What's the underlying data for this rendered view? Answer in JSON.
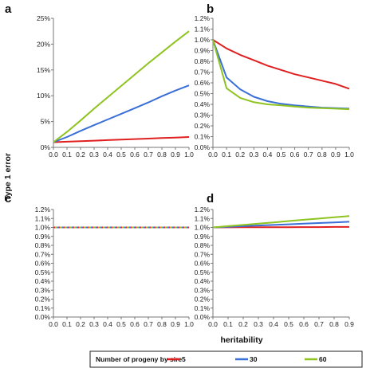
{
  "figure": {
    "ylabel": "Type 1 error",
    "xlabel": "heritability"
  },
  "legend": {
    "title": "Number of progeny by sire",
    "entries": [
      {
        "label": "5",
        "color": "#e02020"
      },
      {
        "label": "30",
        "color": "#3a6fd8"
      },
      {
        "label": "60",
        "color": "#8fc31f"
      }
    ]
  },
  "chart_data": [
    {
      "panel": "a",
      "type": "line",
      "ylim": [
        0,
        25
      ],
      "y_ticks": [
        "0%",
        "5%",
        "10%",
        "15%",
        "20%",
        "25%"
      ],
      "y_tick_values": [
        0,
        5,
        10,
        15,
        20,
        25
      ],
      "xlim": [
        0,
        1.0
      ],
      "x_ticks": [
        "0.0",
        "0.1",
        "0.2",
        "0.3",
        "0.4",
        "0.5",
        "0.6",
        "0.7",
        "0.8",
        "0.9",
        "1.0"
      ],
      "x": [
        0.0,
        0.1,
        0.2,
        0.3,
        0.4,
        0.5,
        0.6,
        0.7,
        0.8,
        0.9,
        1.0
      ],
      "series": [
        {
          "color": "#e02020",
          "values": [
            1.0,
            1.1,
            1.2,
            1.3,
            1.4,
            1.5,
            1.6,
            1.7,
            1.8,
            1.9,
            2.0
          ]
        },
        {
          "color": "#3a6fd8",
          "values": [
            1.0,
            2.0,
            3.2,
            4.3,
            5.4,
            6.5,
            7.6,
            8.7,
            9.9,
            11.0,
            12.0
          ]
        },
        {
          "color": "#8fc31f",
          "values": [
            1.0,
            3.0,
            5.2,
            7.5,
            9.7,
            11.9,
            14.1,
            16.3,
            18.4,
            20.5,
            22.5
          ]
        }
      ]
    },
    {
      "panel": "b",
      "type": "line",
      "ylim": [
        0,
        1.2
      ],
      "y_ticks": [
        "0.0%",
        "0.1%",
        "0.2%",
        "0.3%",
        "0.4%",
        "0.5%",
        "0.6%",
        "0.7%",
        "0.8%",
        "0.9%",
        "1.0%",
        "1.1%",
        "1.2%"
      ],
      "y_tick_values": [
        0,
        0.1,
        0.2,
        0.3,
        0.4,
        0.5,
        0.6,
        0.7,
        0.8,
        0.9,
        1.0,
        1.1,
        1.2
      ],
      "xlim": [
        0,
        1.0
      ],
      "x_ticks": [
        "0.0",
        "0.1",
        "0.2",
        "0.3",
        "0.4",
        "0.5",
        "0.6",
        "0.7",
        "0.8",
        "0.9",
        "1.0"
      ],
      "x": [
        0.0,
        0.1,
        0.2,
        0.3,
        0.4,
        0.5,
        0.6,
        0.7,
        0.8,
        0.9,
        1.0
      ],
      "series": [
        {
          "color": "#e02020",
          "values": [
            1.0,
            0.92,
            0.86,
            0.81,
            0.76,
            0.72,
            0.68,
            0.65,
            0.62,
            0.59,
            0.545
          ]
        },
        {
          "color": "#3a6fd8",
          "values": [
            1.0,
            0.65,
            0.54,
            0.47,
            0.43,
            0.405,
            0.39,
            0.38,
            0.37,
            0.365,
            0.36
          ]
        },
        {
          "color": "#8fc31f",
          "values": [
            1.0,
            0.55,
            0.46,
            0.42,
            0.4,
            0.39,
            0.38,
            0.37,
            0.365,
            0.36,
            0.355
          ]
        }
      ]
    },
    {
      "panel": "c",
      "type": "line",
      "ylim": [
        0,
        1.2
      ],
      "y_ticks": [
        "0.0%",
        "0.1%",
        "0.2%",
        "0.3%",
        "0.4%",
        "0.5%",
        "0.6%",
        "0.7%",
        "0.8%",
        "0.9%",
        "1.0%",
        "1.1%",
        "1.2%"
      ],
      "y_tick_values": [
        0,
        0.1,
        0.2,
        0.3,
        0.4,
        0.5,
        0.6,
        0.7,
        0.8,
        0.9,
        1.0,
        1.1,
        1.2
      ],
      "xlim": [
        0,
        1.0
      ],
      "x_ticks": [
        "0.0",
        "0.1",
        "0.2",
        "0.3",
        "0.4",
        "0.5",
        "0.6",
        "0.7",
        "0.8",
        "0.9",
        "1.0"
      ],
      "x": [
        0.0,
        0.1,
        0.2,
        0.3,
        0.4,
        0.5,
        0.6,
        0.7,
        0.8,
        0.9,
        1.0
      ],
      "series": [
        {
          "color": "#e02020",
          "dashed": true,
          "values": [
            1.0,
            1.0,
            1.0,
            1.0,
            1.0,
            1.0,
            1.0,
            1.0,
            1.0,
            1.0,
            1.0
          ]
        },
        {
          "color": "#3a6fd8",
          "dashed": true,
          "values": [
            1.0,
            1.0,
            1.0,
            1.0,
            1.0,
            1.0,
            1.0,
            1.0,
            1.0,
            1.0,
            1.0
          ]
        },
        {
          "color": "#8fc31f",
          "dashed": true,
          "values": [
            1.0,
            1.0,
            1.0,
            1.0,
            1.0,
            1.0,
            1.0,
            1.0,
            1.0,
            1.0,
            1.0
          ]
        }
      ]
    },
    {
      "panel": "d",
      "type": "line",
      "ylim": [
        0,
        1.2
      ],
      "y_ticks": [
        "0.0%",
        "0.1%",
        "0.2%",
        "0.3%",
        "0.4%",
        "0.5%",
        "0.6%",
        "0.7%",
        "0.8%",
        "0.9%",
        "1.0%",
        "1.1%",
        "1.2%"
      ],
      "y_tick_values": [
        0,
        0.1,
        0.2,
        0.3,
        0.4,
        0.5,
        0.6,
        0.7,
        0.8,
        0.9,
        1.0,
        1.1,
        1.2
      ],
      "xlim": [
        0,
        0.9
      ],
      "x_ticks": [
        "0.0",
        "0.1",
        "0.2",
        "0.3",
        "0.4",
        "0.5",
        "0.6",
        "0.7",
        "0.8",
        "0.9"
      ],
      "x": [
        0.0,
        0.1,
        0.2,
        0.3,
        0.4,
        0.5,
        0.6,
        0.7,
        0.8,
        0.9
      ],
      "series": [
        {
          "color": "#e02020",
          "values": [
            1.0,
            1.001,
            1.002,
            1.002,
            1.003,
            1.003,
            1.004,
            1.004,
            1.005,
            1.005
          ]
        },
        {
          "color": "#3a6fd8",
          "values": [
            1.0,
            1.007,
            1.014,
            1.021,
            1.028,
            1.035,
            1.042,
            1.049,
            1.056,
            1.063
          ]
        },
        {
          "color": "#8fc31f",
          "values": [
            1.0,
            1.014,
            1.028,
            1.042,
            1.056,
            1.071,
            1.085,
            1.099,
            1.113,
            1.127
          ]
        }
      ]
    }
  ]
}
